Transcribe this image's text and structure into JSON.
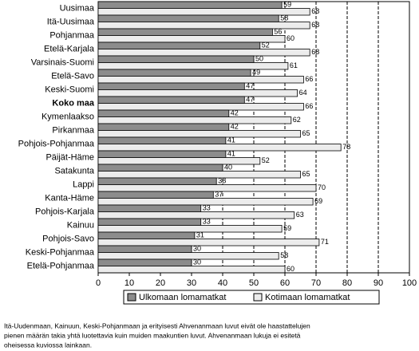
{
  "chart_data": {
    "type": "hbar",
    "categories": [
      "Uusimaa",
      "Itä-Uusimaa",
      "Pohjanmaa",
      "Etelä-Karjala",
      "Varsinais-Suomi",
      "Etelä-Savo",
      "Keski-Suomi",
      "Koko maa",
      "Kymenlaakso",
      "Pirkanmaa",
      "Pohjois-Pohjanmaa",
      "Päijät-Häme",
      "Satakunta",
      "Lappi",
      "Kanta-Häme",
      "Pohjois-Karjala",
      "Kainuu",
      "Pohjois-Savo",
      "Keski-Pohjanmaa",
      "Etelä-Pohjanmaa"
    ],
    "emphasis": "Koko maa",
    "series": [
      {
        "name": "Ulkomaan lomamatkat",
        "color": "#8c8c8c",
        "values": [
          59,
          58,
          56,
          52,
          50,
          49,
          47,
          47,
          42,
          42,
          41,
          41,
          40,
          38,
          37,
          33,
          33,
          31,
          30,
          30
        ]
      },
      {
        "name": "Kotimaan lomamatkat",
        "color": "#ececec",
        "values": [
          68,
          68,
          60,
          68,
          61,
          66,
          64,
          66,
          62,
          65,
          78,
          52,
          65,
          70,
          69,
          63,
          59,
          71,
          58,
          60
        ]
      }
    ],
    "xlim": [
      0,
      100
    ],
    "xticks": [
      0,
      10,
      20,
      30,
      40,
      50,
      60,
      70,
      80,
      90,
      100
    ],
    "grid": true,
    "legend": "bottom",
    "notes": [
      "Itä-Uudenmaan, Kainuun, Keski-Pohjanmaan ja erityisesti Ahvenanmaan luvut eivät ole haastattelujen",
      "pienen määrän takia yhtä luotettavia kuin muiden maakuntien luvut. Ahvenanmaan lukuja ei esitetä",
      "oheisessa kuviossa lainkaan."
    ]
  }
}
